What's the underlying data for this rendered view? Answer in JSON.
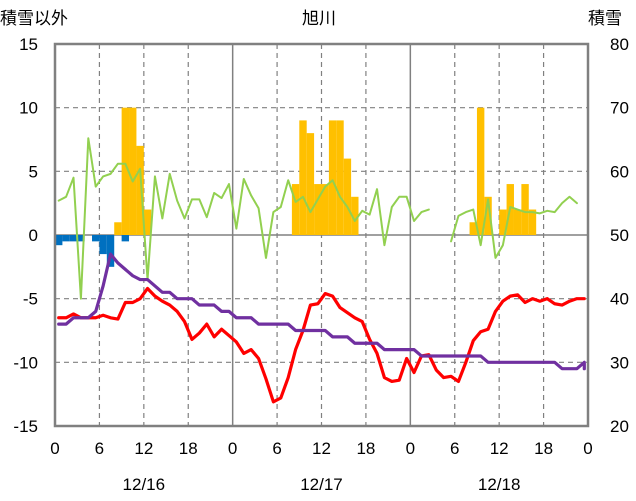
{
  "chart_data": {
    "type": "line",
    "title": "旭川",
    "left_axis_label": "積雪以外",
    "right_axis_label": "積雪",
    "left_ylim": [
      -15,
      15
    ],
    "left_ticks": [
      -15,
      -10,
      -5,
      0,
      5,
      10,
      15
    ],
    "right_ylim": [
      20,
      80
    ],
    "right_ticks": [
      20,
      30,
      40,
      50,
      60,
      70,
      80
    ],
    "xlim_hours": [
      0,
      72
    ],
    "hour_labels": [
      "0",
      "6",
      "12",
      "18",
      "0",
      "6",
      "12",
      "18",
      "0",
      "6",
      "12",
      "18",
      "0"
    ],
    "date_labels": [
      {
        "hour": 12,
        "label": "12/16"
      },
      {
        "hour": 36,
        "label": "12/17"
      },
      {
        "hour": 60,
        "label": "12/18"
      }
    ],
    "grid": {
      "vertical_solid_hours": [
        24,
        48
      ],
      "vertical_dashed_hours": [
        6,
        12,
        18,
        30,
        36,
        42,
        54,
        60,
        66
      ],
      "horizontal_dashed_values": [
        -10,
        -5,
        5,
        10
      ]
    },
    "series": [
      {
        "kind": "bar",
        "color": "#ffc000",
        "axis": "left",
        "x": [
          8,
          9,
          10,
          11,
          12,
          32,
          33,
          34,
          35,
          36,
          37,
          38,
          39,
          40,
          56,
          57,
          58,
          59,
          60,
          61,
          62,
          63,
          64
        ],
        "y": [
          1,
          10,
          10,
          7,
          2,
          4,
          9,
          8,
          4,
          4,
          9,
          9,
          6,
          3,
          1,
          10,
          3,
          0,
          2,
          4,
          2,
          4,
          2
        ]
      },
      {
        "kind": "bar",
        "color": "#0070c0",
        "axis": "left",
        "x": [
          0,
          1,
          2,
          3,
          5,
          6,
          7,
          9
        ],
        "y": [
          -0.8,
          -0.5,
          -0.5,
          -0.5,
          -0.5,
          -1.5,
          -2.5,
          -0.5
        ]
      },
      {
        "kind": "line",
        "color": "#92d050",
        "axis": "left",
        "x": [
          0,
          1,
          2,
          3,
          4,
          5,
          6,
          7,
          8,
          9,
          10,
          11,
          12,
          13,
          14,
          15,
          16,
          17,
          18,
          19,
          20,
          21,
          22,
          23,
          24,
          25,
          26,
          27,
          28,
          29,
          30,
          31,
          32,
          33,
          34,
          35,
          36,
          37,
          38,
          39,
          40,
          41,
          42,
          43,
          44,
          45,
          46,
          47,
          48,
          49,
          50,
          51
        ],
        "y": [
          2.7,
          3,
          4.5,
          -5,
          7.6,
          3.8,
          4.6,
          4.8,
          5.6,
          5.6,
          4.2,
          5.2,
          -3.5,
          4.6,
          1.3,
          4.8,
          2.7,
          1.3,
          2.8,
          2.8,
          1.4,
          3.3,
          2.9,
          4,
          0.5,
          4.4,
          3.1,
          2.1,
          -1.8,
          1.8,
          2.2,
          4.3,
          2.6,
          3,
          1.8,
          2.8,
          3.8,
          4.3,
          3,
          2.2,
          1.1,
          1.9,
          1.6,
          3.6,
          -0.8,
          2.2,
          3,
          3,
          1.1,
          1.8,
          2,
          null
        ]
      },
      {
        "kind": "line",
        "color": "#92d050",
        "axis": "left",
        "x": [
          53,
          54,
          55,
          56,
          57,
          58,
          59,
          60,
          61,
          62,
          63,
          64,
          65,
          66,
          67,
          68,
          69,
          70,
          71
        ],
        "y": [
          -0.5,
          1.5,
          1.8,
          2,
          -0.8,
          2.8,
          -1.8,
          -0.8,
          2.2,
          2,
          1.8,
          1.8,
          1.7,
          1.9,
          1.8,
          2.5,
          3,
          2.5,
          null
        ]
      },
      {
        "kind": "line",
        "color": "#ff0000",
        "axis": "left",
        "x": [
          0,
          1,
          2,
          3,
          4,
          5,
          6,
          7,
          8,
          9,
          10,
          11,
          12,
          13,
          14,
          15,
          16,
          17,
          18,
          19,
          20,
          21,
          22,
          23,
          24,
          25,
          26,
          27,
          28,
          29,
          30,
          31,
          32,
          33,
          34,
          35,
          36,
          37,
          38,
          39,
          40,
          41,
          42,
          43,
          44,
          45,
          46,
          47,
          48,
          49,
          50,
          51,
          52,
          53,
          54,
          55,
          56,
          57,
          58,
          59,
          60,
          61,
          62,
          63,
          64,
          65,
          66,
          67,
          68,
          69,
          70,
          71
        ],
        "y": [
          -6.5,
          -6.5,
          -6.2,
          -6.5,
          -6.5,
          -6.5,
          -6.3,
          -6.5,
          -6.6,
          -5.3,
          -5.3,
          -5,
          -4.2,
          -4.8,
          -5.2,
          -5.5,
          -6,
          -6.8,
          -8.2,
          -7.7,
          -7,
          -8,
          -7.4,
          -7.9,
          -8.4,
          -9.3,
          -9,
          -9.7,
          -11.3,
          -13.1,
          -12.8,
          -11.2,
          -9,
          -7.5,
          -5.5,
          -5.4,
          -4.6,
          -4.8,
          -5.7,
          -6.1,
          -6.5,
          -6.8,
          -8.2,
          -9.3,
          -11.2,
          -11.5,
          -11.4,
          -9.7,
          -10.8,
          -9.5,
          -9.4,
          -10.6,
          -11.2,
          -11.1,
          -11.5,
          -10,
          -8.3,
          -7.6,
          -7.4,
          -6,
          -5.2,
          -4.8,
          -4.7,
          -5.3,
          -5,
          -5.2,
          -5,
          -5.4,
          -5.5,
          -5.2,
          -5,
          -5
        ],
        "end": {
          "x": 71.5,
          "y": -5
        }
      },
      {
        "kind": "line",
        "color": "#7030a0",
        "axis": "left",
        "x": [
          0,
          1,
          2,
          3,
          4,
          5,
          6,
          7,
          8,
          9,
          10,
          11,
          12,
          13,
          14,
          15,
          16,
          17,
          18,
          19,
          20,
          21,
          22,
          23,
          24,
          25,
          26,
          27,
          28,
          29,
          30,
          31,
          32,
          33,
          34,
          35,
          36,
          37,
          38,
          39,
          40,
          41,
          42,
          43,
          44,
          45,
          46,
          47,
          48,
          49,
          50,
          51,
          52,
          53,
          54,
          55,
          56,
          57,
          58,
          59,
          60,
          61,
          62,
          63,
          64,
          65,
          66,
          67,
          68,
          69,
          70,
          71
        ],
        "y": [
          -7,
          -7,
          -6.5,
          -6.5,
          -6.5,
          -6,
          -4,
          -1.5,
          -2.2,
          -2.7,
          -3.2,
          -3.5,
          -3.5,
          -4,
          -4.5,
          -4.5,
          -5,
          -5,
          -5,
          -5.5,
          -5.5,
          -5.5,
          -6,
          -6,
          -6.5,
          -6.5,
          -6.5,
          -7,
          -7,
          -7,
          -7,
          -7,
          -7.5,
          -7.5,
          -7.5,
          -7.5,
          -7.5,
          -8,
          -8,
          -8,
          -8.5,
          -8.5,
          -8.5,
          -8.5,
          -9,
          -9,
          -9,
          -9,
          -9,
          -9.5,
          -9.5,
          -9.5,
          -9.5,
          -9.5,
          -9.5,
          -9.5,
          -9.5,
          -9.5,
          -10,
          -10,
          -10,
          -10,
          -10,
          -10,
          -10,
          -10,
          -10,
          -10,
          -10.5,
          -10.5,
          -10.5,
          -10
        ],
        "end": {
          "x": 71.5,
          "y": -10.5
        }
      }
    ]
  }
}
